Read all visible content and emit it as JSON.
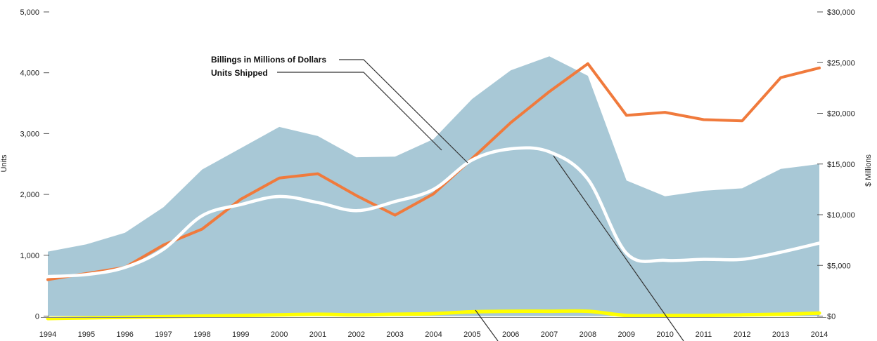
{
  "chart_data": {
    "type": "area",
    "title": "",
    "categories": [
      "1994",
      "1995",
      "1996",
      "1997",
      "1998",
      "1999",
      "2000",
      "2001",
      "2002",
      "2003",
      "2004",
      "2005",
      "2006",
      "2007",
      "2008",
      "2009",
      "2010",
      "2011",
      "2012",
      "2013",
      "2014"
    ],
    "y_left": {
      "label": "Units",
      "range": [
        0,
        5000
      ],
      "ticks": [
        0,
        1000,
        2000,
        3000,
        4000,
        5000
      ],
      "tick_labels": [
        "0",
        "1,000",
        "2,000",
        "3,000",
        "4,000",
        "5,000"
      ]
    },
    "y_right": {
      "label": "$ Millions",
      "range": [
        0,
        30000
      ],
      "ticks": [
        0,
        5000,
        10000,
        15000,
        20000,
        25000,
        30000
      ],
      "tick_labels": [
        "$0",
        "$5,000",
        "$10,000",
        "$15,000",
        "$20,000",
        "$25,000",
        "$30,000"
      ]
    },
    "series": [
      {
        "name": "Units Shipped (area)",
        "kind": "area",
        "axis": "left",
        "color": "#a8c8d6",
        "values": [
          1060,
          1180,
          1370,
          1790,
          2410,
          2760,
          3110,
          2960,
          2610,
          2620,
          2910,
          3570,
          4040,
          4270,
          3950,
          2230,
          1970,
          2060,
          2100,
          2420,
          2500
        ]
      },
      {
        "name": "Orange line",
        "kind": "line",
        "axis": "left",
        "color": "#f07a3c",
        "values": [
          600,
          700,
          800,
          1170,
          1430,
          1920,
          2270,
          2340,
          1980,
          1660,
          2010,
          2590,
          3180,
          3690,
          4150,
          3300,
          3350,
          3230,
          3210,
          3920,
          4080
        ]
      },
      {
        "name": "White line",
        "kind": "line",
        "axis": "right",
        "color": "#ffffff",
        "values": [
          3900,
          4100,
          4800,
          6600,
          9900,
          11000,
          11800,
          11200,
          10400,
          11300,
          12500,
          15400,
          16500,
          16200,
          13500,
          6200,
          5500,
          5600,
          5600,
          6300,
          7200
        ]
      },
      {
        "name": "Yellow line",
        "kind": "line",
        "axis": "left",
        "color": "#ffff00",
        "values": [
          -40,
          -30,
          -20,
          -10,
          0,
          10,
          20,
          30,
          20,
          30,
          40,
          70,
          80,
          80,
          80,
          10,
          10,
          10,
          20,
          30,
          50
        ]
      }
    ],
    "legend": {
      "placement": "top-center",
      "entries": [
        "Billings in Millions of Dollars",
        "Units Shipped"
      ]
    },
    "grid": false
  }
}
